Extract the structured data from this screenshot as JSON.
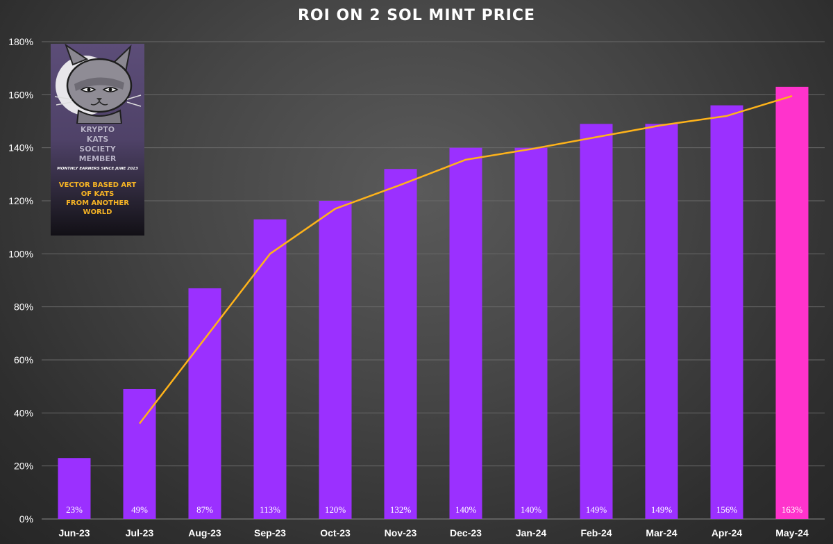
{
  "chart_data": {
    "type": "bar",
    "title": "ROI ON 2 SOL MINT PRICE",
    "categories": [
      "Jun-23",
      "Jul-23",
      "Aug-23",
      "Sep-23",
      "Oct-23",
      "Nov-23",
      "Dec-23",
      "Jan-24",
      "Feb-24",
      "Mar-24",
      "Apr-24",
      "May-24"
    ],
    "series": [
      {
        "type": "bar",
        "values": [
          23,
          49,
          87,
          113,
          120,
          132,
          140,
          140,
          149,
          149,
          156,
          163
        ],
        "labels": [
          "23%",
          "49%",
          "87%",
          "113%",
          "120%",
          "132%",
          "140%",
          "140%",
          "149%",
          "149%",
          "156%",
          "163%"
        ],
        "color": "#9b30ff",
        "highlight_color": "#ff33cc",
        "highlight_index": 11
      },
      {
        "type": "line",
        "values": [
          null,
          36,
          68,
          100,
          117,
          126,
          135.5,
          139.5,
          144,
          148.5,
          152,
          159.5
        ],
        "color": "#ffb31a"
      }
    ],
    "y_axis": {
      "min": 0,
      "max": 180,
      "step": 20,
      "tick_labels": [
        "0%",
        "20%",
        "40%",
        "60%",
        "80%",
        "100%",
        "120%",
        "140%",
        "160%",
        "180%"
      ]
    },
    "grid": true,
    "legend": "none"
  },
  "promo": {
    "brand": "KRYPTO\nKATS\nSOCIETY\nMEMBER",
    "tagline": "MONTHLY EARNERS SINCE JUNE 2023",
    "description": "VECTOR BASED ART\nOF KATS\nFROM ANOTHER WORLD",
    "icon": "cat-face-icon"
  }
}
